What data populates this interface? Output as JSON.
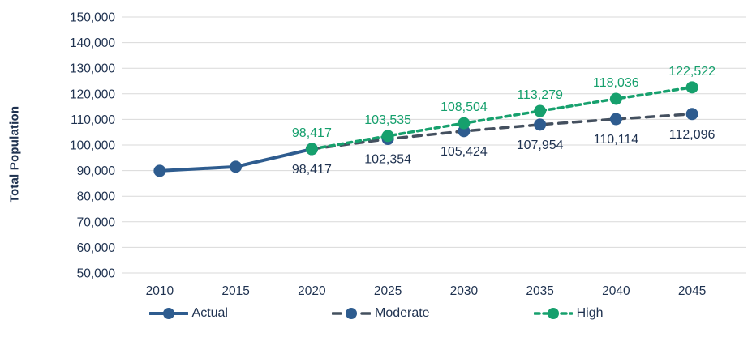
{
  "chart_data": {
    "type": "line",
    "title": "",
    "ylabel": "Total Population",
    "xlabel": "",
    "categories": [
      "2010",
      "2015",
      "2020",
      "2025",
      "2030",
      "2035",
      "2040",
      "2045"
    ],
    "y_ticks": [
      "150,000",
      "140,000",
      "130,000",
      "120,000",
      "110,000",
      "100,000",
      "90,000",
      "80,000",
      "70,000",
      "60,000",
      "50,000"
    ],
    "ylim": [
      50000,
      150000
    ],
    "y_step": 10000,
    "grid": "horizontal",
    "gridline_color": "#D9D9D9",
    "text_color": "#1F3250",
    "legend_position": "bottom",
    "series": [
      {
        "name": "Actual",
        "line_style": "solid",
        "line_color": "#2E5C8F",
        "marker_color": "#2E5C8F",
        "label_color": "#1F3250",
        "label_side": "below",
        "values": [
          89900,
          91500,
          98417,
          null,
          null,
          null,
          null,
          null
        ],
        "labels": [
          null,
          null,
          null,
          null,
          null,
          null,
          null,
          null
        ]
      },
      {
        "name": "Moderate",
        "line_style": "dashed-long",
        "line_color": "#44505F",
        "marker_color": "#2E5C8F",
        "label_color": "#1F3250",
        "label_side": "below",
        "values": [
          null,
          null,
          98417,
          102354,
          105424,
          107954,
          110114,
          112096
        ],
        "labels": [
          null,
          null,
          "98,417",
          "102,354",
          "105,424",
          "107,954",
          "110,114",
          "112,096"
        ]
      },
      {
        "name": "High",
        "line_style": "dashed-short",
        "line_color": "#16A06D",
        "marker_color": "#16A06D",
        "label_color": "#16A06D",
        "label_side": "above",
        "values": [
          null,
          null,
          98417,
          103535,
          108504,
          113279,
          118036,
          122522
        ],
        "labels": [
          null,
          null,
          "98,417",
          "103,535",
          "108,504",
          "113,279",
          "118,036",
          "122,522"
        ]
      }
    ]
  },
  "legend": {
    "items": [
      "Actual",
      "Moderate",
      "High"
    ]
  }
}
